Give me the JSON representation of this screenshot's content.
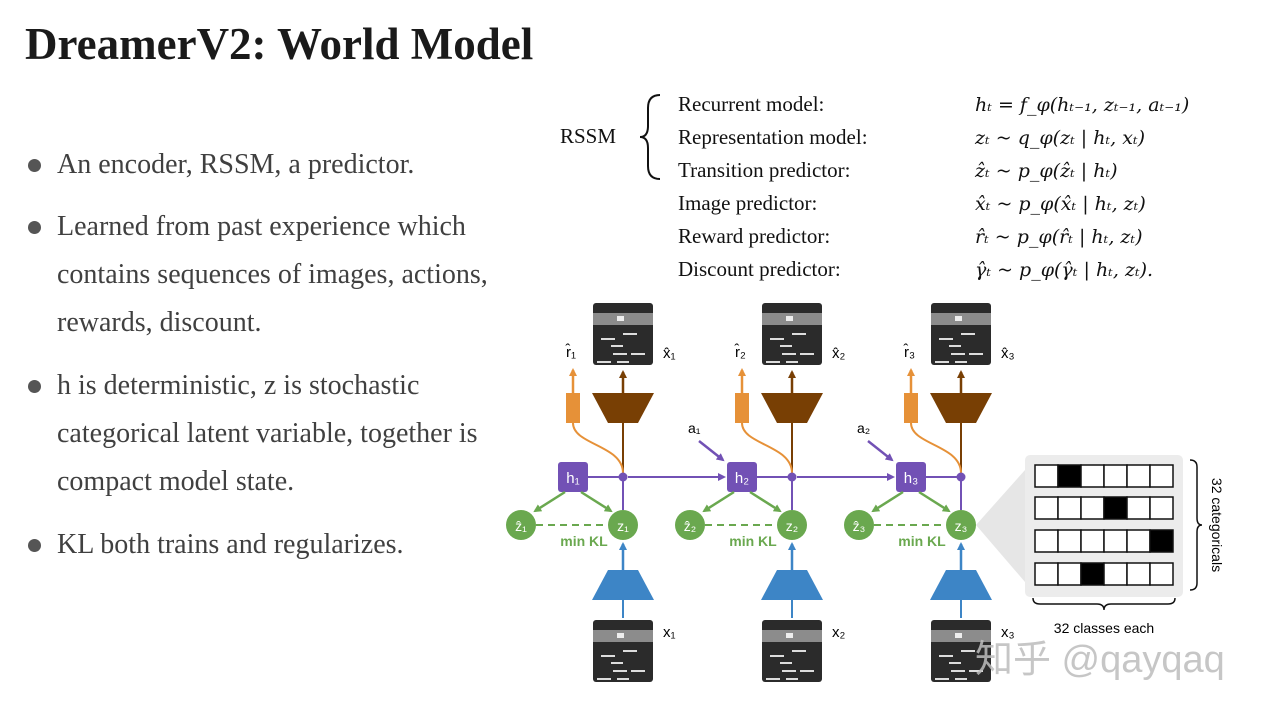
{
  "title": "DreamerV2: World Model",
  "bullets": [
    "An encoder, RSSM, a predictor.",
    "Learned from past experience which contains sequences of images, actions,  rewards, discount.",
    "h is deterministic, z is stochastic categorical latent variable, together is compact model state.",
    "KL both trains and regularizes."
  ],
  "equations": {
    "group_label": "RSSM",
    "rows": [
      {
        "label": "Recurrent model:",
        "formula": "hₜ = f_φ(hₜ₋₁, zₜ₋₁, aₜ₋₁)"
      },
      {
        "label": "Representation model:",
        "formula": "zₜ ~ q_φ(zₜ | hₜ, xₜ)"
      },
      {
        "label": "Transition predictor:",
        "formula": "ẑₜ ~ p_φ(ẑₜ | hₜ)"
      },
      {
        "label": "Image predictor:",
        "formula": "x̂ₜ ~ p_φ(x̂ₜ | hₜ, zₜ)"
      },
      {
        "label": "Reward predictor:",
        "formula": "r̂ₜ ~ p_φ(r̂ₜ | hₜ, zₜ)"
      },
      {
        "label": "Discount predictor:",
        "formula": "γ̂ₜ ~ p_φ(γ̂ₜ | hₜ, zₜ)."
      }
    ]
  },
  "diagram": {
    "steps": [
      {
        "h": "h₁",
        "z": "z₁",
        "z_hat": "ẑ₁",
        "x": "x₁",
        "x_hat": "x̂₁",
        "r_hat": "r̂₁",
        "kl": "min KL",
        "action": ""
      },
      {
        "h": "h₂",
        "z": "z₂",
        "z_hat": "ẑ₂",
        "x": "x₂",
        "x_hat": "x̂₂",
        "r_hat": "r̂₂",
        "kl": "min KL",
        "action": "a₁"
      },
      {
        "h": "h₃",
        "z": "z₃",
        "z_hat": "ẑ₃",
        "x": "x₃",
        "x_hat": "x̂₃",
        "r_hat": "r̂₃",
        "kl": "min KL",
        "action": "a₂"
      }
    ],
    "categorical_rows_active_class": [
      1,
      3,
      5,
      2
    ],
    "classes_shown": 6,
    "categoricals_label": "32 categoricals",
    "classes_label": "32 classes each",
    "colors": {
      "recurrent": "#7251b5",
      "latent": "#6aa84f",
      "encoder": "#3d85c6",
      "decoder": "#783f04",
      "reward": "#e69138"
    }
  },
  "watermark": "知乎 @qayqaq"
}
